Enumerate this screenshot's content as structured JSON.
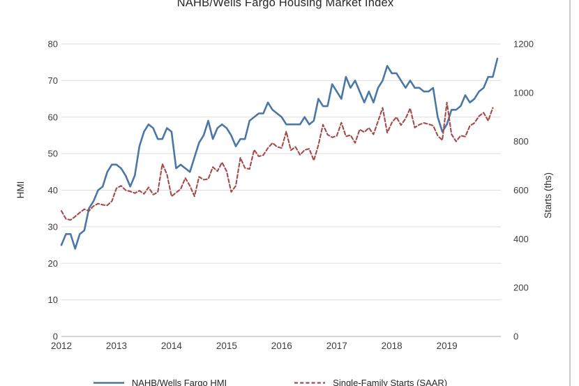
{
  "chart_data": {
    "type": "line",
    "title": "NAHB/Wells Fargo Housing Market Index",
    "x_interval": "monthly",
    "x_start_month": "2012-01",
    "x_tick_labels": [
      "2012",
      "2013",
      "2014",
      "2015",
      "2016",
      "2017",
      "2018",
      "2019"
    ],
    "left_axis": {
      "label": "HMI",
      "min": 0,
      "max": 80,
      "tick_step": 10,
      "ticks": [
        0,
        10,
        20,
        30,
        40,
        50,
        60,
        70,
        80
      ]
    },
    "right_axis": {
      "label": "Starts (ths)",
      "min": 0,
      "max": 1200,
      "tick_step": 200,
      "ticks": [
        0,
        200,
        400,
        600,
        800,
        1000,
        1200
      ]
    },
    "grid": {
      "horizontal": true,
      "vertical": false,
      "color": "#dddddd",
      "axis_line_color": "#c6c6c6"
    },
    "legend_position": "bottom",
    "series": [
      {
        "name": "NAHB/Wells Fargo HMI",
        "axis": "left",
        "style": "solid",
        "color": "#4a77a5",
        "values": [
          25,
          28,
          28,
          24,
          28,
          29,
          35,
          37,
          40,
          41,
          45,
          47,
          47,
          46,
          44,
          41,
          44,
          52,
          56,
          58,
          57,
          54,
          54,
          57,
          56,
          46,
          47,
          46,
          45,
          49,
          53,
          55,
          59,
          54,
          57,
          58,
          57,
          55,
          52,
          54,
          54,
          59,
          60,
          61,
          61,
          64,
          62,
          61,
          60,
          58,
          58,
          58,
          58,
          60,
          58,
          59,
          65,
          63,
          63,
          69,
          67,
          65,
          71,
          68,
          70,
          67,
          64,
          67,
          64,
          68,
          70,
          74,
          72,
          72,
          70,
          68,
          70,
          68,
          68,
          67,
          67,
          68,
          60,
          56,
          58,
          62,
          62,
          63,
          66,
          64,
          65,
          67,
          68,
          71,
          71,
          76
        ]
      },
      {
        "name": "Single-Family Starts (SAAR)",
        "axis": "right",
        "style": "dashed",
        "color": "#a5494a",
        "values": [
          515,
          482,
          478,
          492,
          508,
          522,
          515,
          535,
          545,
          540,
          538,
          555,
          608,
          618,
          600,
          595,
          588,
          598,
          585,
          612,
          582,
          592,
          708,
          665,
          575,
          590,
          605,
          650,
          618,
          575,
          655,
          643,
          646,
          695,
          678,
          714,
          678,
          593,
          618,
          733,
          691,
          687,
          766,
          739,
          744,
          773,
          794,
          778,
          773,
          841,
          764,
          778,
          745,
          765,
          770,
          722,
          785,
          869,
          828,
          817,
          823,
          877,
          821,
          826,
          794,
          849,
          838,
          856,
          829,
          883,
          938,
          836,
          877,
          900,
          867,
          894,
          936,
          857,
          869,
          876,
          871,
          865,
          824,
          805,
          960,
          830,
          800,
          824,
          820,
          864,
          876,
          904,
          918,
          885,
          938
        ]
      }
    ]
  },
  "colors": {
    "background": "#ffffff",
    "text": "#3d3d3d",
    "frame_line": "#cccccc"
  }
}
